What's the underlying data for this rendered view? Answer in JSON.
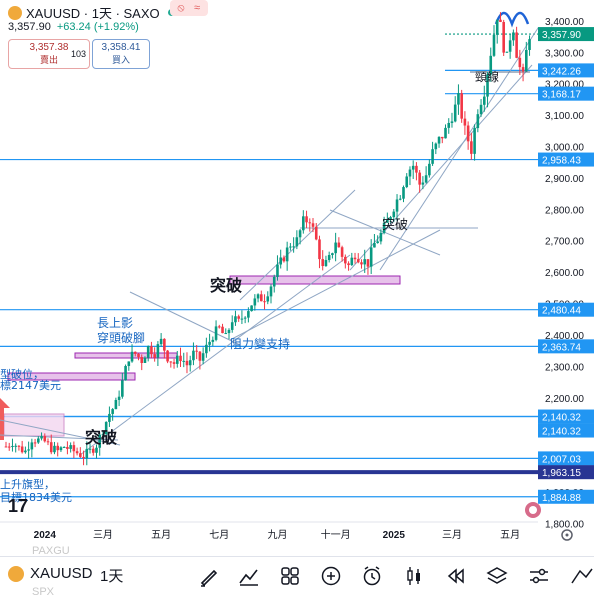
{
  "header": {
    "symbol": "XAUUSD · 1天 · SAXO",
    "last_price": "3,357.90",
    "change": "+63.24 (+1.92%)",
    "sell_price": "3,357.38",
    "sell_label": "賣出",
    "spread": "103",
    "buy_price": "3,358.41",
    "buy_label": "買入"
  },
  "chart_data": {
    "type": "candlestick",
    "title": "XAUUSD · 1天 · SAXO",
    "ylim": [
      1760,
      3460
    ],
    "y_ticks": [
      {
        "value": 3400,
        "label": "3,400.00"
      },
      {
        "value": 3300,
        "label": "3,300.00"
      },
      {
        "value": 3200,
        "label": "3,200.00"
      },
      {
        "value": 3100,
        "label": "3,100.00"
      },
      {
        "value": 3000,
        "label": "3,000.00"
      },
      {
        "value": 2900,
        "label": "2,900.00"
      },
      {
        "value": 2800,
        "label": "2,800.00"
      },
      {
        "value": 2700,
        "label": "2,700.00"
      },
      {
        "value": 2600,
        "label": "2,600.00"
      },
      {
        "value": 2500,
        "label": "2,500.00"
      },
      {
        "value": 2400,
        "label": "2,400.00"
      },
      {
        "value": 2300,
        "label": "2,300.00"
      },
      {
        "value": 2200,
        "label": "2,200.00"
      },
      {
        "value": 2100,
        "label": "2,100.00"
      },
      {
        "value": 2000,
        "label": "2,000.00"
      },
      {
        "value": 1900,
        "label": "1,900.00"
      },
      {
        "value": 1800,
        "label": "1,800.00"
      }
    ],
    "x_ticks": [
      {
        "label": "2024",
        "bold": true,
        "idx": 12
      },
      {
        "label": "三月",
        "bold": false,
        "idx": 30
      },
      {
        "label": "五月",
        "bold": false,
        "idx": 48
      },
      {
        "label": "七月",
        "bold": false,
        "idx": 66
      },
      {
        "label": "九月",
        "bold": false,
        "idx": 84
      },
      {
        "label": "十一月",
        "bold": false,
        "idx": 102
      },
      {
        "label": "2025",
        "bold": true,
        "idx": 120
      },
      {
        "label": "三月",
        "bold": false,
        "idx": 138
      },
      {
        "label": "五月",
        "bold": false,
        "idx": 156
      }
    ],
    "price_levels": [
      {
        "value": 3357.9,
        "label": "3,357.90",
        "color": "#089981",
        "style": "dotted"
      },
      {
        "value": 3242.26,
        "label": "3,242.26",
        "color": "#2196f3",
        "style": "solid"
      },
      {
        "value": 3168.17,
        "label": "3,168.17",
        "color": "#2196f3",
        "style": "solid"
      },
      {
        "value": 2958.43,
        "label": "2,958.43",
        "color": "#2196f3",
        "style": "solid"
      },
      {
        "value": 2480.44,
        "label": "2,480.44",
        "color": "#2196f3",
        "style": "solid"
      },
      {
        "value": 2363.74,
        "label": "2,363.74",
        "color": "#2196f3",
        "style": "solid"
      },
      {
        "value": 2140.32,
        "label": "2,140.32",
        "color": "#2196f3",
        "style": "solid"
      },
      {
        "value": 2140.32,
        "label": "2,140.32",
        "color": "#2196f3",
        "style": "solid"
      },
      {
        "value": 2007.03,
        "label": "2,007.03",
        "color": "#2196f3",
        "style": "solid"
      },
      {
        "value": 1963.15,
        "label": "1,963.15",
        "color": "#283593",
        "style": "thick"
      },
      {
        "value": 1884.88,
        "label": "1,884.88",
        "color": "#2196f3",
        "style": "solid"
      }
    ],
    "annotations": [
      {
        "text": "型破位，",
        "color": "#1565c0"
      },
      {
        "text": "標2147美元",
        "color": "#1565c0"
      },
      {
        "text": "長上影",
        "color": "#1565c0"
      },
      {
        "text": "穿頭破腳",
        "color": "#1565c0"
      },
      {
        "text": "突破",
        "color": "#131722"
      },
      {
        "text": "阻力變支持",
        "color": "#1565c0"
      },
      {
        "text": "突破",
        "color": "#131722"
      },
      {
        "text": "突破",
        "color": "#131722"
      },
      {
        "text": "頸線",
        "color": "#131722"
      },
      {
        "text": "上升旗型，",
        "color": "#1565c0"
      },
      {
        "text": "目標1834美元",
        "color": "#1565c0"
      }
    ],
    "trend": [
      [
        0,
        2045
      ],
      [
        2,
        2060
      ],
      [
        4,
        2040
      ],
      [
        6,
        2030
      ],
      [
        8,
        2070
      ],
      [
        10,
        2065
      ],
      [
        12,
        2060
      ],
      [
        14,
        2040
      ],
      [
        16,
        2030
      ],
      [
        18,
        2045
      ],
      [
        20,
        2035
      ],
      [
        22,
        2025
      ],
      [
        24,
        2015
      ],
      [
        26,
        2030
      ],
      [
        28,
        2050
      ],
      [
        30,
        2100
      ],
      [
        32,
        2150
      ],
      [
        34,
        2180
      ],
      [
        36,
        2250
      ],
      [
        38,
        2330
      ],
      [
        40,
        2340
      ],
      [
        42,
        2320
      ],
      [
        44,
        2360
      ],
      [
        46,
        2345
      ],
      [
        48,
        2380
      ],
      [
        50,
        2330
      ],
      [
        52,
        2310
      ],
      [
        54,
        2330
      ],
      [
        56,
        2305
      ],
      [
        58,
        2340
      ],
      [
        60,
        2320
      ],
      [
        62,
        2360
      ],
      [
        64,
        2400
      ],
      [
        66,
        2420
      ],
      [
        68,
        2390
      ],
      [
        70,
        2450
      ],
      [
        72,
        2440
      ],
      [
        74,
        2470
      ],
      [
        76,
        2500
      ],
      [
        78,
        2515
      ],
      [
        80,
        2520
      ],
      [
        82,
        2560
      ],
      [
        84,
        2610
      ],
      [
        86,
        2650
      ],
      [
        88,
        2690
      ],
      [
        90,
        2700
      ],
      [
        92,
        2760
      ],
      [
        94,
        2770
      ],
      [
        96,
        2700
      ],
      [
        98,
        2610
      ],
      [
        100,
        2640
      ],
      [
        102,
        2700
      ],
      [
        104,
        2650
      ],
      [
        106,
        2620
      ],
      [
        108,
        2660
      ],
      [
        110,
        2640
      ],
      [
        112,
        2630
      ],
      [
        114,
        2690
      ],
      [
        116,
        2720
      ],
      [
        118,
        2760
      ],
      [
        120,
        2810
      ],
      [
        122,
        2850
      ],
      [
        124,
        2920
      ],
      [
        126,
        2940
      ],
      [
        128,
        2880
      ],
      [
        130,
        2910
      ],
      [
        132,
        2980
      ],
      [
        134,
        3020
      ],
      [
        136,
        3050
      ],
      [
        138,
        3100
      ],
      [
        140,
        3150
      ],
      [
        142,
        3050
      ],
      [
        144,
        2990
      ],
      [
        146,
        3120
      ],
      [
        148,
        3180
      ],
      [
        150,
        3300
      ],
      [
        152,
        3420
      ],
      [
        153,
        3380
      ],
      [
        154,
        3320
      ],
      [
        155,
        3280
      ],
      [
        156,
        3350
      ],
      [
        157,
        3380
      ],
      [
        158,
        3300
      ],
      [
        159,
        3250
      ],
      [
        160,
        3220
      ],
      [
        161,
        3300
      ],
      [
        162,
        3358
      ]
    ]
  },
  "toolbar": {
    "symbol": "XAUUSD",
    "interval": "1天",
    "ghost_top": "PAXGU",
    "ghost_bottom": "SPX",
    "icons": [
      "draw-icon",
      "indicators-icon",
      "layout-icon",
      "add-icon",
      "alert-icon",
      "candle-type-icon",
      "replay-icon",
      "layers-icon",
      "settings-icon",
      "compare-icon"
    ]
  }
}
